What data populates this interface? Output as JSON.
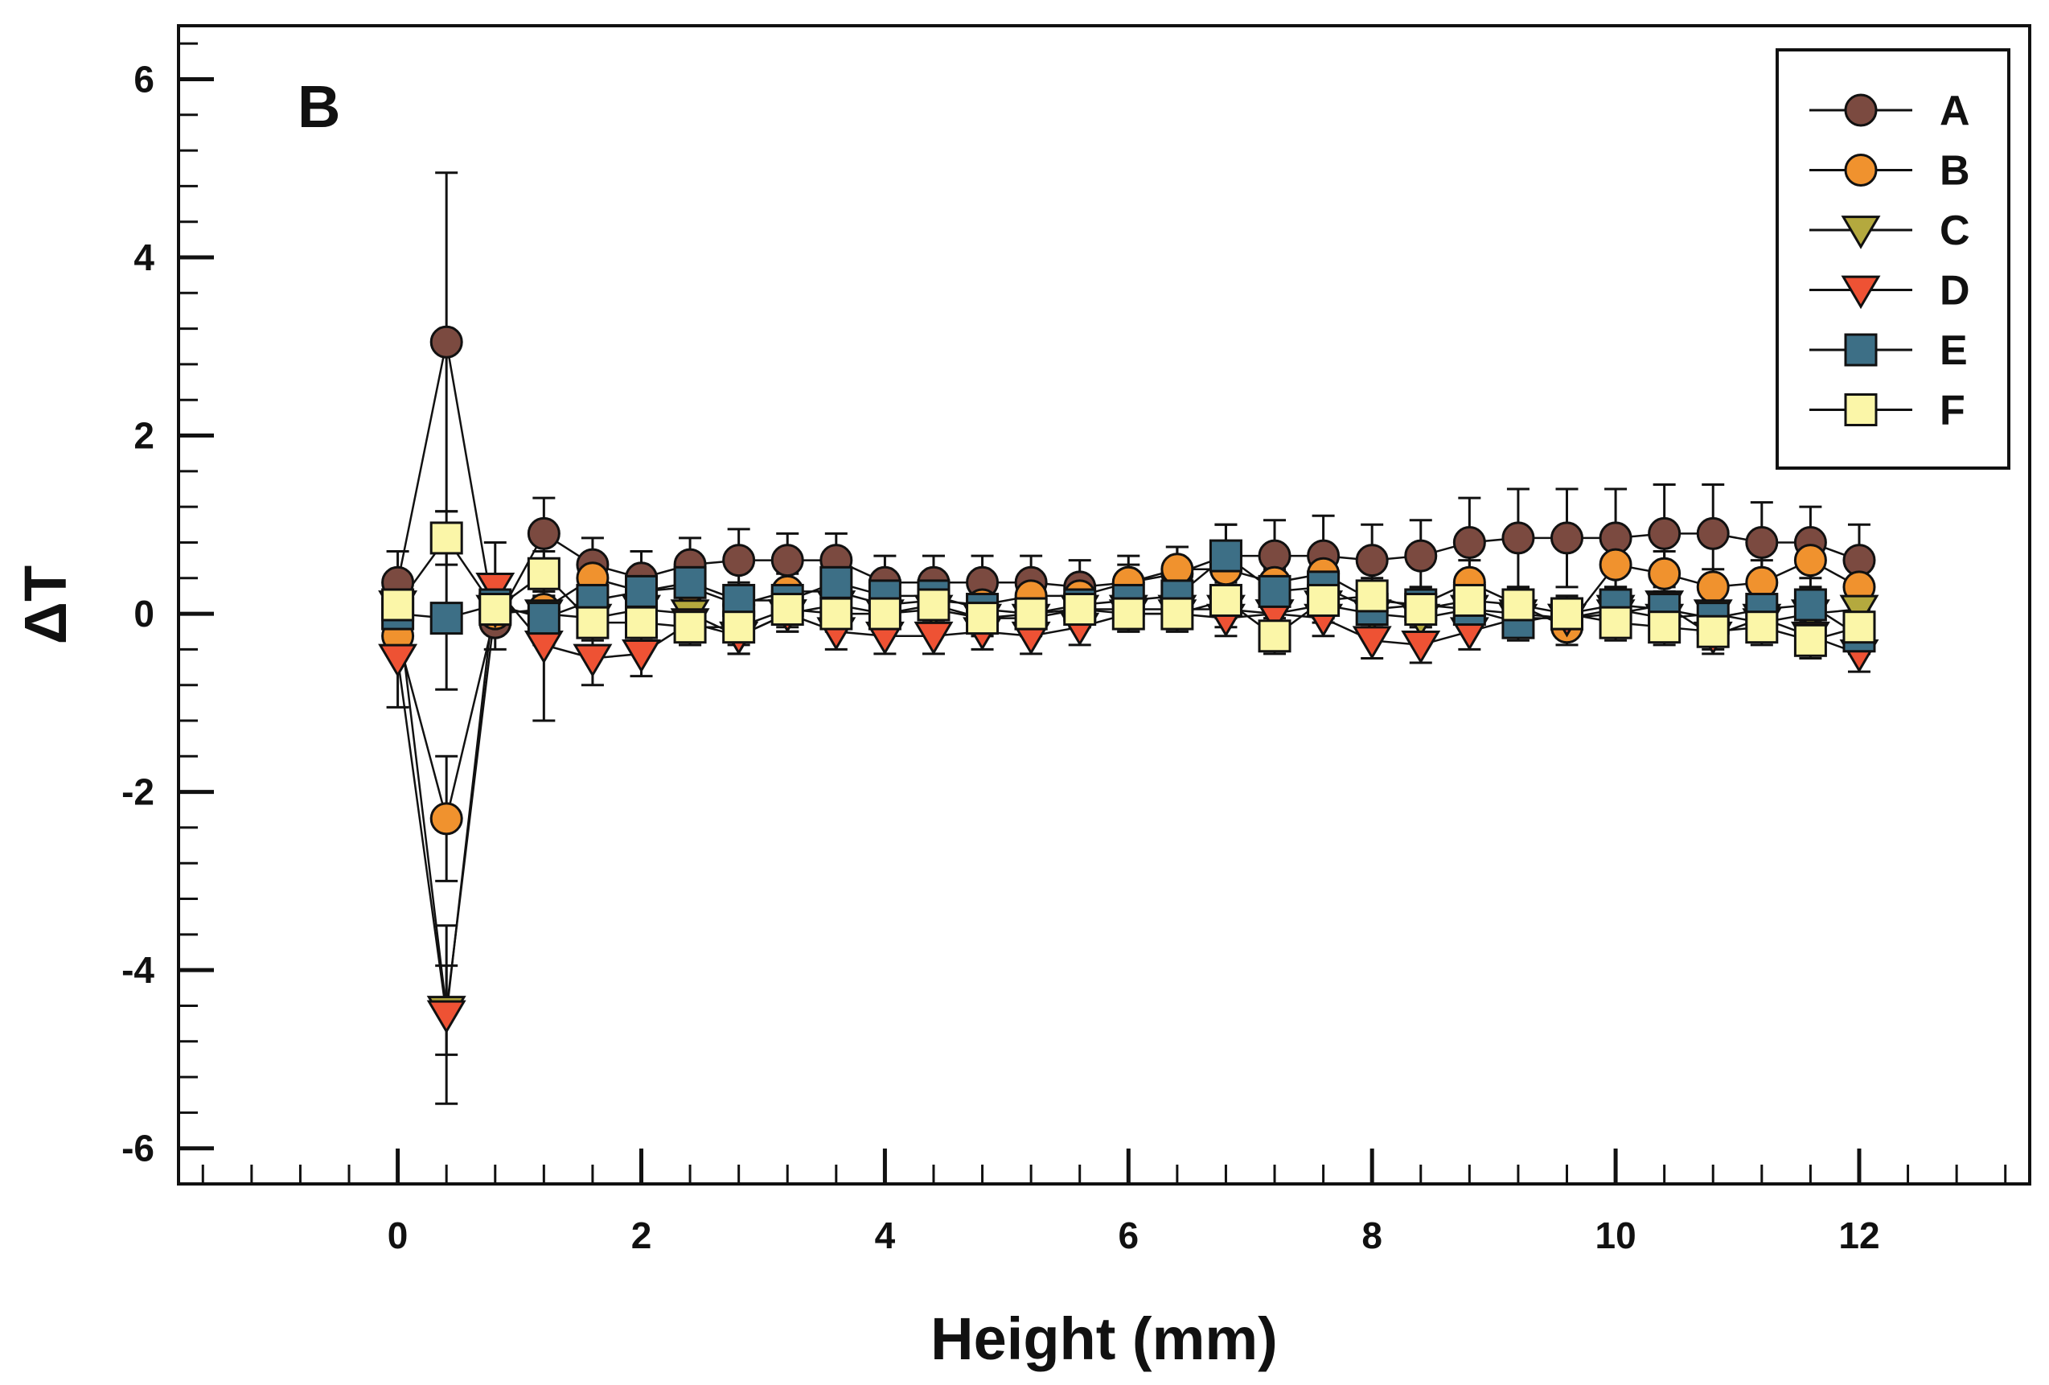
{
  "chart_data": {
    "type": "scatter",
    "panel_label": "B",
    "title": "",
    "xlabel": "Height (mm)",
    "ylabel": "ΔT",
    "xlim": [
      -1.8,
      13.4
    ],
    "ylim": [
      -6.4,
      6.6
    ],
    "xticks": [
      0,
      2,
      4,
      6,
      8,
      10,
      12
    ],
    "xtick_labels": [
      "0",
      "2",
      "4",
      "6",
      "8",
      "10",
      "12"
    ],
    "yticks": [
      -6,
      -4,
      -2,
      0,
      2,
      4,
      6
    ],
    "ytick_labels": [
      "-6",
      "-4",
      "-2",
      "0",
      "2",
      "4",
      "6"
    ],
    "grid": false,
    "legend_position": "top-right",
    "x": [
      0,
      0.4,
      0.8,
      1.2,
      1.6,
      2.0,
      2.4,
      2.8,
      3.2,
      3.6,
      4.0,
      4.4,
      4.8,
      5.2,
      5.6,
      6.0,
      6.4,
      6.8,
      7.2,
      7.6,
      8.0,
      8.4,
      8.8,
      9.2,
      9.6,
      10.0,
      10.4,
      10.8,
      11.2,
      11.6,
      12.0
    ],
    "series": [
      {
        "name": "A",
        "marker": "circle",
        "color": "#7b4a40",
        "values": [
          0.35,
          3.05,
          -0.1,
          0.9,
          0.55,
          0.4,
          0.55,
          0.6,
          0.6,
          0.6,
          0.35,
          0.35,
          0.35,
          0.35,
          0.3,
          0.35,
          0.45,
          0.65,
          0.65,
          0.65,
          0.6,
          0.65,
          0.8,
          0.85,
          0.85,
          0.85,
          0.9,
          0.9,
          0.8,
          0.8,
          0.6
        ],
        "errors": [
          0.35,
          1.9,
          0.3,
          0.4,
          0.3,
          0.3,
          0.3,
          0.35,
          0.3,
          0.3,
          0.3,
          0.3,
          0.3,
          0.3,
          0.3,
          0.3,
          0.3,
          0.35,
          0.4,
          0.45,
          0.4,
          0.4,
          0.5,
          0.55,
          0.55,
          0.55,
          0.55,
          0.55,
          0.45,
          0.4,
          0.4
        ]
      },
      {
        "name": "B",
        "marker": "circle",
        "color": "#f0922e",
        "values": [
          -0.25,
          -2.3,
          0.0,
          0.05,
          0.4,
          0.25,
          0.3,
          0.1,
          0.25,
          0.25,
          0.1,
          0.15,
          0.1,
          0.2,
          0.2,
          0.35,
          0.5,
          0.5,
          0.35,
          0.45,
          0.15,
          0.1,
          0.35,
          0.1,
          -0.15,
          0.55,
          0.45,
          0.3,
          0.35,
          0.6,
          0.3
        ],
        "errors": [
          0.2,
          0.7,
          0.2,
          0.2,
          0.2,
          0.2,
          0.2,
          0.2,
          0.2,
          0.2,
          0.2,
          0.2,
          0.2,
          0.2,
          0.2,
          0.2,
          0.25,
          0.3,
          0.25,
          0.25,
          0.2,
          0.2,
          0.25,
          0.2,
          0.2,
          0.25,
          0.25,
          0.2,
          0.25,
          0.3,
          0.25
        ]
      },
      {
        "name": "C",
        "marker": "triangle-down",
        "color": "#b4a93e",
        "values": [
          0.1,
          -4.45,
          0.05,
          0.0,
          -0.05,
          0.05,
          0.0,
          -0.25,
          0.0,
          0.1,
          0.0,
          0.05,
          -0.05,
          -0.05,
          0.05,
          0.05,
          0.05,
          0.05,
          0.0,
          0.1,
          0.0,
          -0.05,
          0.05,
          0.0,
          -0.05,
          0.05,
          -0.05,
          0.0,
          -0.1,
          0.0,
          0.05
        ],
        "errors": [
          0.2,
          0.5,
          0.2,
          0.2,
          0.2,
          0.2,
          0.2,
          0.2,
          0.2,
          0.2,
          0.2,
          0.2,
          0.2,
          0.2,
          0.2,
          0.2,
          0.2,
          0.2,
          0.2,
          0.2,
          0.2,
          0.2,
          0.2,
          0.2,
          0.2,
          0.2,
          0.2,
          0.2,
          0.2,
          0.2,
          0.2
        ]
      },
      {
        "name": "D",
        "marker": "triangle-down",
        "color": "#ee5234",
        "values": [
          -0.5,
          -4.5,
          0.3,
          -0.35,
          -0.5,
          -0.45,
          -0.1,
          -0.25,
          0.0,
          -0.2,
          -0.25,
          -0.25,
          -0.2,
          -0.25,
          -0.15,
          0.0,
          0.0,
          -0.05,
          0.0,
          -0.05,
          -0.3,
          -0.35,
          -0.2,
          -0.05,
          -0.05,
          0.0,
          0.1,
          -0.25,
          -0.05,
          -0.25,
          -0.45
        ],
        "errors": [
          0.55,
          1.0,
          0.5,
          0.85,
          0.3,
          0.25,
          0.25,
          0.2,
          0.2,
          0.2,
          0.2,
          0.2,
          0.2,
          0.2,
          0.2,
          0.2,
          0.2,
          0.2,
          0.2,
          0.2,
          0.2,
          0.2,
          0.2,
          0.2,
          0.2,
          0.2,
          0.2,
          0.2,
          0.2,
          0.2,
          0.2
        ]
      },
      {
        "name": "E",
        "marker": "square",
        "color": "#3d6f86",
        "values": [
          0.0,
          -0.05,
          0.1,
          -0.05,
          0.15,
          0.25,
          0.35,
          0.15,
          0.15,
          0.35,
          0.2,
          0.2,
          0.05,
          0.0,
          0.1,
          0.15,
          0.2,
          0.65,
          0.25,
          0.3,
          0.05,
          0.1,
          0.05,
          -0.1,
          0.0,
          0.1,
          0.05,
          -0.05,
          0.05,
          0.1,
          -0.25
        ],
        "errors": [
          0.25,
          0.8,
          0.25,
          0.3,
          0.25,
          0.25,
          0.25,
          0.2,
          0.2,
          0.25,
          0.2,
          0.2,
          0.2,
          0.2,
          0.2,
          0.2,
          0.25,
          0.35,
          0.25,
          0.25,
          0.2,
          0.2,
          0.2,
          0.2,
          0.2,
          0.2,
          0.2,
          0.2,
          0.2,
          0.2,
          0.2
        ]
      },
      {
        "name": "F",
        "marker": "square",
        "color": "#fbf6a8",
        "values": [
          0.1,
          0.85,
          0.05,
          0.45,
          -0.1,
          -0.1,
          -0.15,
          -0.15,
          0.05,
          0.0,
          0.0,
          0.1,
          -0.05,
          0.0,
          0.05,
          0.0,
          0.0,
          0.15,
          -0.25,
          0.15,
          0.2,
          0.05,
          0.15,
          0.1,
          0.0,
          -0.1,
          -0.15,
          -0.2,
          -0.15,
          -0.3,
          -0.15
        ],
        "errors": [
          0.3,
          0.3,
          0.2,
          0.25,
          0.2,
          0.2,
          0.2,
          0.2,
          0.2,
          0.2,
          0.2,
          0.2,
          0.2,
          0.2,
          0.2,
          0.2,
          0.2,
          0.2,
          0.2,
          0.2,
          0.2,
          0.2,
          0.2,
          0.2,
          0.2,
          0.2,
          0.2,
          0.2,
          0.2,
          0.2,
          0.2
        ]
      }
    ]
  }
}
